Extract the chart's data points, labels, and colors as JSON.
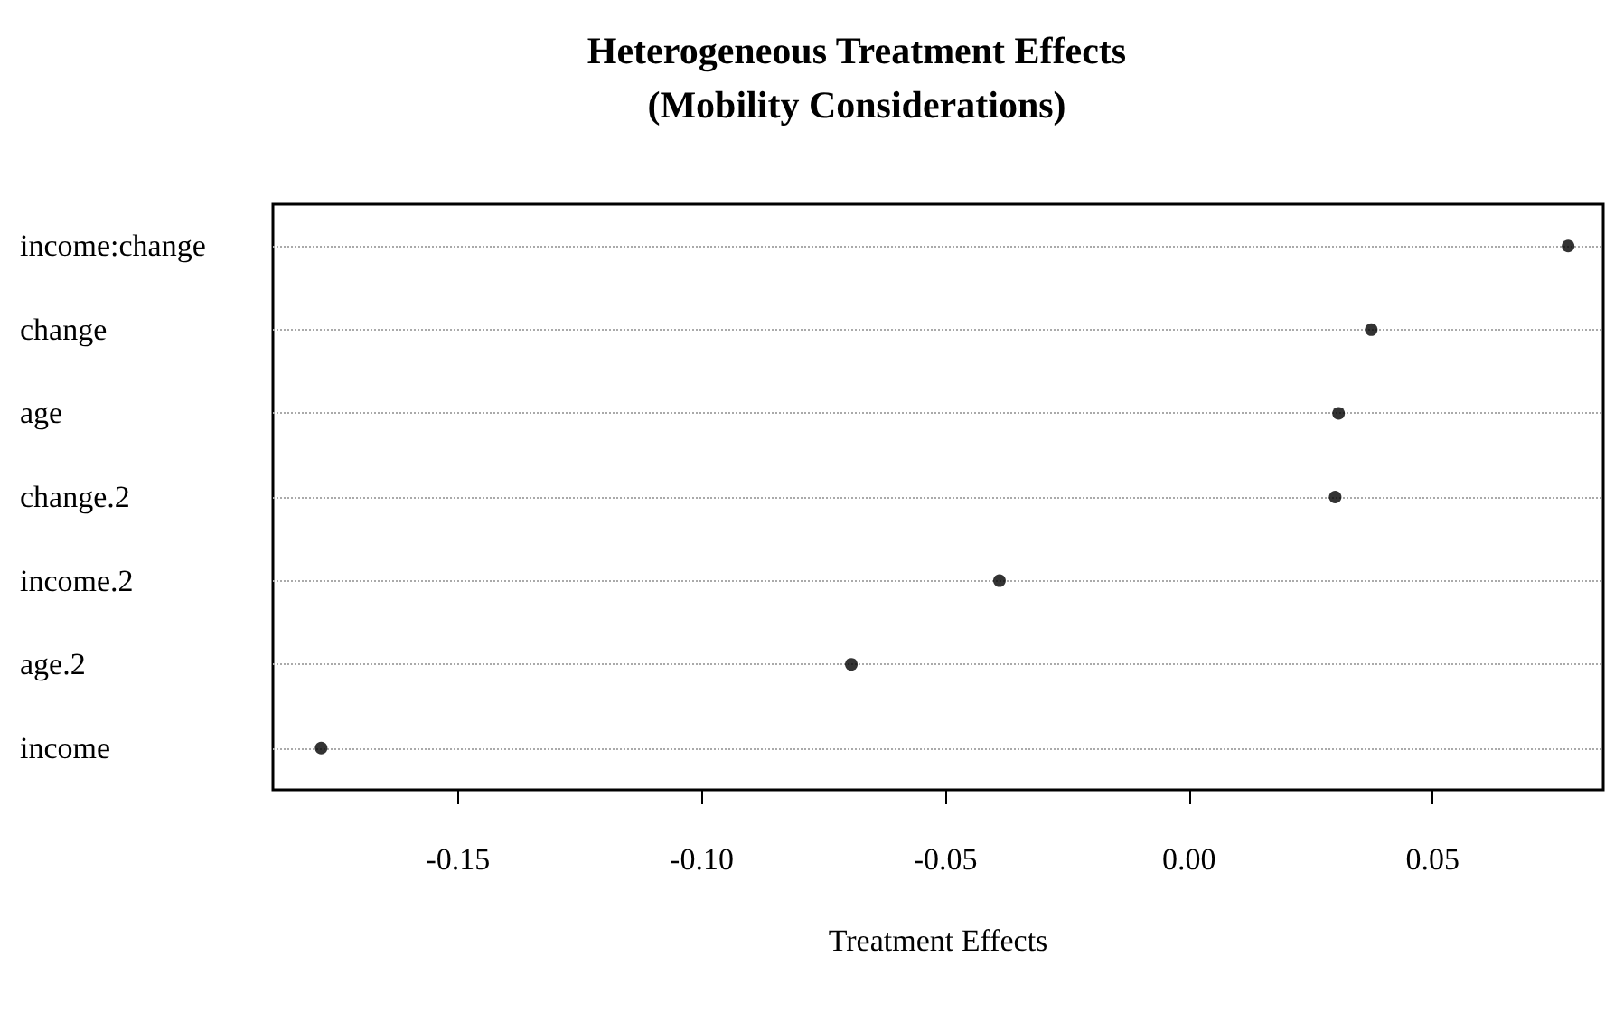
{
  "chart_data": {
    "type": "scatter",
    "orientation": "horizontal",
    "title": "Heterogeneous Treatment Effects\n(Mobility Considerations)",
    "xlabel": "Treatment Effects",
    "categories": [
      "income:change",
      "change",
      "age",
      "change.2",
      "income.2",
      "age.2",
      "income"
    ],
    "series": [
      {
        "color": "#000000",
        "values": [
          0.0778,
          0.0374,
          0.0307,
          0.03,
          -0.0389,
          -0.0693,
          -0.1781
        ]
      }
    ],
    "xlim": [
      -0.188,
      0.085
    ],
    "xticks": [
      {
        "value": -0.15,
        "label": "-0.15"
      },
      {
        "value": -0.1,
        "label": "-0.10"
      },
      {
        "value": -0.05,
        "label": "-0.05"
      },
      {
        "value": 0,
        "label": "0.00"
      },
      {
        "value": 0.05,
        "label": "0.05"
      }
    ],
    "grid": "y",
    "marker": "circle"
  }
}
